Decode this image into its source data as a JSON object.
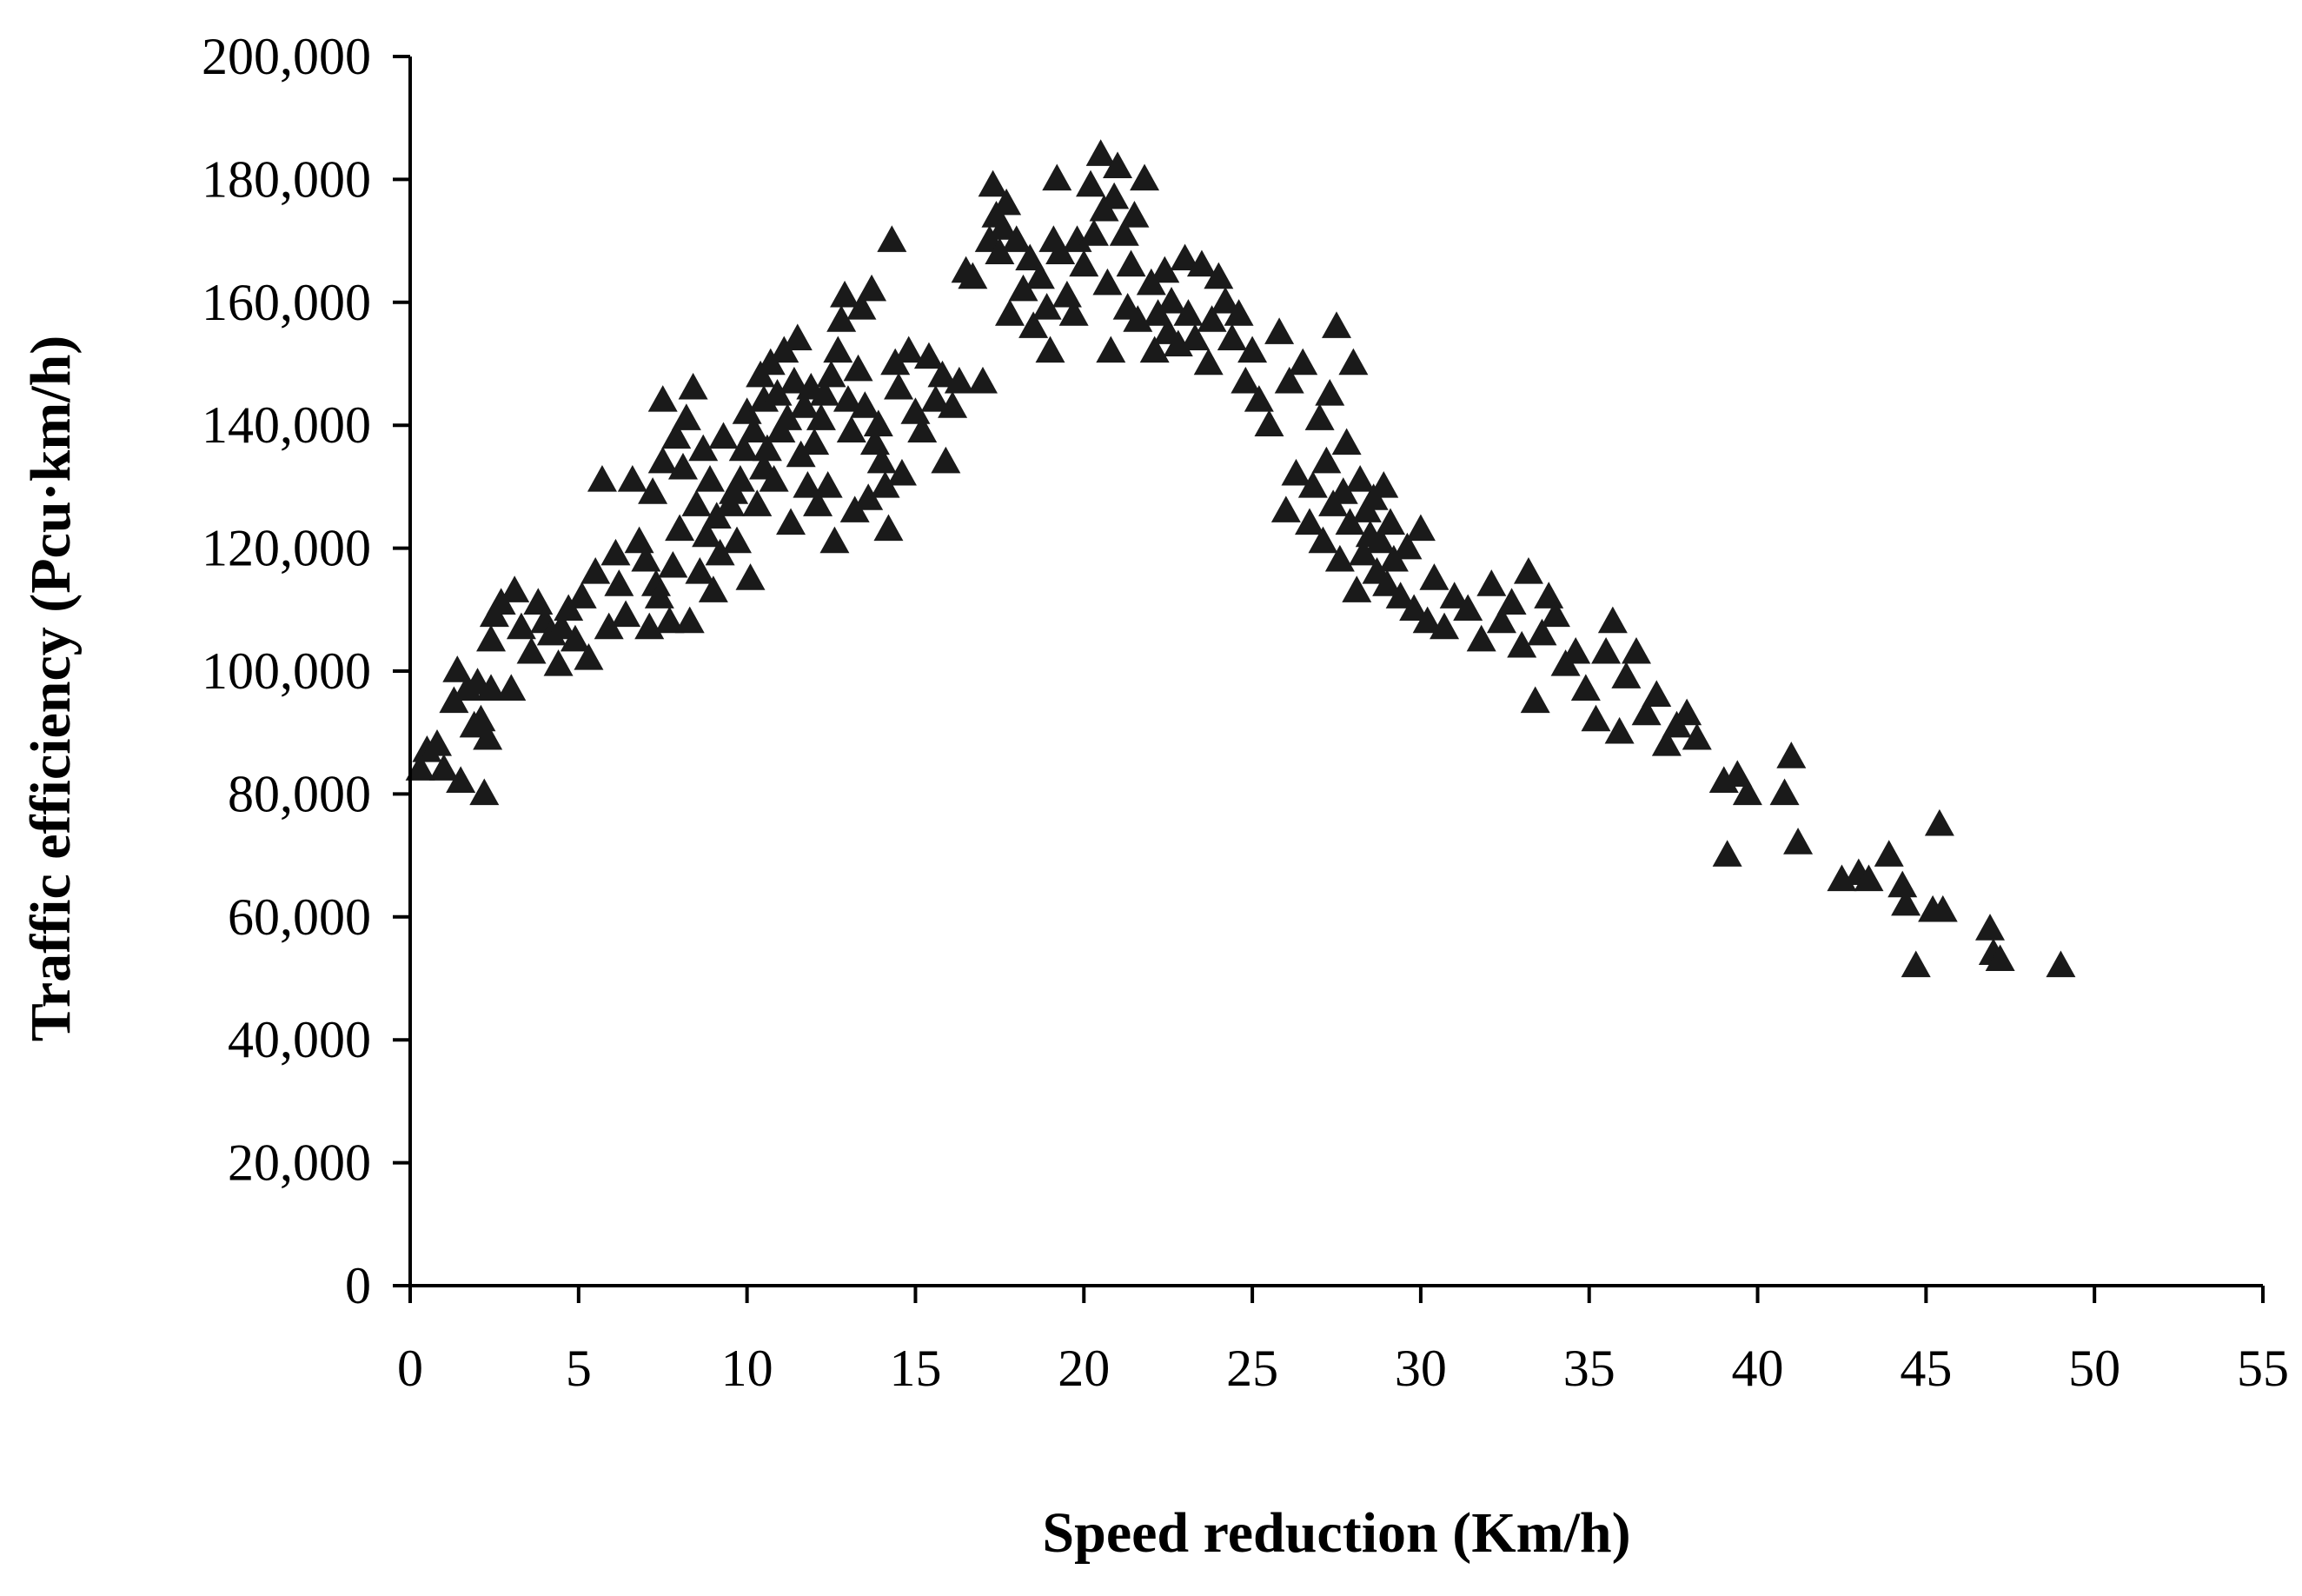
{
  "chart_data": {
    "type": "scatter",
    "title": "",
    "xlabel": "Speed reduction (Km/h)",
    "ylabel": "Traffic efficiency (Pcu·km/h)",
    "xlim": [
      0,
      55
    ],
    "ylim": [
      0,
      200000
    ],
    "x_ticks": [
      0,
      5,
      10,
      15,
      20,
      25,
      30,
      35,
      40,
      45,
      50,
      55
    ],
    "x_tick_labels": [
      "0",
      "5",
      "10",
      "15",
      "20",
      "25",
      "30",
      "35",
      "40",
      "45",
      "50",
      "55"
    ],
    "y_ticks": [
      0,
      20000,
      40000,
      60000,
      80000,
      100000,
      120000,
      140000,
      160000,
      180000,
      200000
    ],
    "y_tick_labels": [
      "0",
      "20,000",
      "40,000",
      "60,000",
      "80,000",
      "100,000",
      "120,000",
      "140,000",
      "160,000",
      "180,000",
      "200,000"
    ],
    "grid": false,
    "legend": "none",
    "marker": "triangle",
    "marker_color": "#1a1a1a",
    "series": [
      {
        "name": "Traffic efficiency",
        "points": [
          [
            0.3,
            84000
          ],
          [
            0.5,
            87000
          ],
          [
            0.8,
            88000
          ],
          [
            1.0,
            84000
          ],
          [
            1.3,
            95000
          ],
          [
            1.4,
            100000
          ],
          [
            1.5,
            82000
          ],
          [
            1.7,
            97000
          ],
          [
            1.9,
            91000
          ],
          [
            2.0,
            98000
          ],
          [
            2.1,
            92000
          ],
          [
            2.2,
            80000
          ],
          [
            2.3,
            89000
          ],
          [
            2.4,
            97000
          ],
          [
            2.4,
            105000
          ],
          [
            2.5,
            109000
          ],
          [
            2.7,
            111000
          ],
          [
            3.0,
            97000
          ],
          [
            3.1,
            113000
          ],
          [
            3.3,
            107000
          ],
          [
            3.6,
            103000
          ],
          [
            3.8,
            111000
          ],
          [
            4.0,
            108000
          ],
          [
            4.2,
            106000
          ],
          [
            4.4,
            101000
          ],
          [
            4.5,
            107000
          ],
          [
            4.7,
            110000
          ],
          [
            4.9,
            105000
          ],
          [
            5.1,
            112000
          ],
          [
            5.3,
            102000
          ],
          [
            5.5,
            116000
          ],
          [
            5.7,
            131000
          ],
          [
            5.9,
            107000
          ],
          [
            6.1,
            119000
          ],
          [
            6.2,
            114000
          ],
          [
            6.4,
            109000
          ],
          [
            6.6,
            131000
          ],
          [
            6.8,
            121000
          ],
          [
            7.0,
            118000
          ],
          [
            7.1,
            107000
          ],
          [
            7.2,
            129000
          ],
          [
            7.3,
            114000
          ],
          [
            7.4,
            112000
          ],
          [
            7.5,
            144000
          ],
          [
            7.5,
            134000
          ],
          [
            7.7,
            108000
          ],
          [
            7.8,
            117000
          ],
          [
            7.9,
            138000
          ],
          [
            8.0,
            123000
          ],
          [
            8.1,
            133000
          ],
          [
            8.2,
            141000
          ],
          [
            8.3,
            108000
          ],
          [
            8.4,
            146000
          ],
          [
            8.5,
            127000
          ],
          [
            8.6,
            116000
          ],
          [
            8.7,
            136000
          ],
          [
            8.8,
            122000
          ],
          [
            8.9,
            131000
          ],
          [
            9.0,
            113000
          ],
          [
            9.1,
            125000
          ],
          [
            9.2,
            119000
          ],
          [
            9.3,
            138000
          ],
          [
            9.5,
            127000
          ],
          [
            9.6,
            129000
          ],
          [
            9.7,
            121000
          ],
          [
            9.8,
            131000
          ],
          [
            9.9,
            136000
          ],
          [
            10.0,
            142000
          ],
          [
            10.1,
            115000
          ],
          [
            10.2,
            139000
          ],
          [
            10.3,
            127000
          ],
          [
            10.4,
            148000
          ],
          [
            10.5,
            133000
          ],
          [
            10.5,
            144000
          ],
          [
            10.6,
            136000
          ],
          [
            10.7,
            150000
          ],
          [
            10.8,
            131000
          ],
          [
            10.9,
            145000
          ],
          [
            11.0,
            139000
          ],
          [
            11.1,
            152000
          ],
          [
            11.2,
            141000
          ],
          [
            11.3,
            124000
          ],
          [
            11.4,
            147000
          ],
          [
            11.5,
            154000
          ],
          [
            11.6,
            135000
          ],
          [
            11.7,
            143000
          ],
          [
            11.8,
            130000
          ],
          [
            11.9,
            146000
          ],
          [
            12.0,
            137000
          ],
          [
            12.1,
            127000
          ],
          [
            12.2,
            141000
          ],
          [
            12.3,
            145000
          ],
          [
            12.4,
            130000
          ],
          [
            12.5,
            148000
          ],
          [
            12.6,
            121000
          ],
          [
            12.7,
            152000
          ],
          [
            12.8,
            157000
          ],
          [
            12.9,
            161000
          ],
          [
            13.0,
            144000
          ],
          [
            13.1,
            139000
          ],
          [
            13.2,
            126000
          ],
          [
            13.3,
            149000
          ],
          [
            13.4,
            159000
          ],
          [
            13.5,
            143000
          ],
          [
            13.6,
            128000
          ],
          [
            13.7,
            162000
          ],
          [
            13.8,
            137000
          ],
          [
            13.9,
            140000
          ],
          [
            14.0,
            134000
          ],
          [
            14.1,
            130000
          ],
          [
            14.2,
            123000
          ],
          [
            14.3,
            170000
          ],
          [
            14.4,
            150000
          ],
          [
            14.5,
            146000
          ],
          [
            14.6,
            132000
          ],
          [
            14.8,
            152000
          ],
          [
            15.0,
            142000
          ],
          [
            15.2,
            139000
          ],
          [
            15.4,
            151000
          ],
          [
            15.6,
            144000
          ],
          [
            15.8,
            148000
          ],
          [
            15.9,
            134000
          ],
          [
            16.1,
            143000
          ],
          [
            16.3,
            147000
          ],
          [
            16.5,
            165000
          ],
          [
            16.7,
            164000
          ],
          [
            17.0,
            147000
          ],
          [
            17.2,
            170000
          ],
          [
            17.3,
            179000
          ],
          [
            17.4,
            174000
          ],
          [
            17.5,
            168000
          ],
          [
            17.6,
            172000
          ],
          [
            17.7,
            176000
          ],
          [
            17.8,
            158000
          ],
          [
            18.0,
            170000
          ],
          [
            18.2,
            162000
          ],
          [
            18.4,
            167000
          ],
          [
            18.5,
            156000
          ],
          [
            18.7,
            164000
          ],
          [
            18.9,
            159000
          ],
          [
            19.0,
            152000
          ],
          [
            19.1,
            170000
          ],
          [
            19.2,
            180000
          ],
          [
            19.3,
            168000
          ],
          [
            19.5,
            161000
          ],
          [
            19.7,
            158000
          ],
          [
            19.8,
            170000
          ],
          [
            20.0,
            166000
          ],
          [
            20.2,
            179000
          ],
          [
            20.3,
            171000
          ],
          [
            20.5,
            184000
          ],
          [
            20.6,
            175000
          ],
          [
            20.7,
            163000
          ],
          [
            20.8,
            152000
          ],
          [
            20.9,
            177000
          ],
          [
            21.0,
            182000
          ],
          [
            21.2,
            171000
          ],
          [
            21.3,
            159000
          ],
          [
            21.4,
            166000
          ],
          [
            21.5,
            174000
          ],
          [
            21.6,
            157000
          ],
          [
            21.8,
            180000
          ],
          [
            22.0,
            163000
          ],
          [
            22.1,
            152000
          ],
          [
            22.2,
            158000
          ],
          [
            22.4,
            165000
          ],
          [
            22.5,
            155000
          ],
          [
            22.6,
            160000
          ],
          [
            22.8,
            153000
          ],
          [
            23.0,
            167000
          ],
          [
            23.1,
            158000
          ],
          [
            23.3,
            154000
          ],
          [
            23.5,
            166000
          ],
          [
            23.7,
            150000
          ],
          [
            23.8,
            157000
          ],
          [
            24.0,
            164000
          ],
          [
            24.2,
            160000
          ],
          [
            24.4,
            154000
          ],
          [
            24.6,
            158000
          ],
          [
            24.8,
            147000
          ],
          [
            25.0,
            152000
          ],
          [
            25.2,
            144000
          ],
          [
            25.5,
            140000
          ],
          [
            25.8,
            155000
          ],
          [
            26.0,
            126000
          ],
          [
            26.1,
            147000
          ],
          [
            26.3,
            132000
          ],
          [
            26.5,
            150000
          ],
          [
            26.7,
            124000
          ],
          [
            26.8,
            130000
          ],
          [
            27.0,
            141000
          ],
          [
            27.1,
            121000
          ],
          [
            27.2,
            134000
          ],
          [
            27.3,
            145000
          ],
          [
            27.4,
            127000
          ],
          [
            27.5,
            156000
          ],
          [
            27.6,
            118000
          ],
          [
            27.7,
            129000
          ],
          [
            27.8,
            137000
          ],
          [
            27.9,
            124000
          ],
          [
            28.0,
            150000
          ],
          [
            28.1,
            113000
          ],
          [
            28.2,
            131000
          ],
          [
            28.3,
            119000
          ],
          [
            28.4,
            126000
          ],
          [
            28.5,
            122000
          ],
          [
            28.6,
            128000
          ],
          [
            28.7,
            116000
          ],
          [
            28.8,
            121000
          ],
          [
            28.9,
            130000
          ],
          [
            29.0,
            114000
          ],
          [
            29.1,
            124000
          ],
          [
            29.2,
            118000
          ],
          [
            29.4,
            112000
          ],
          [
            29.6,
            120000
          ],
          [
            29.8,
            110000
          ],
          [
            30.0,
            123000
          ],
          [
            30.2,
            108000
          ],
          [
            30.4,
            115000
          ],
          [
            30.7,
            107000
          ],
          [
            31.0,
            112000
          ],
          [
            31.4,
            110000
          ],
          [
            31.8,
            105000
          ],
          [
            32.1,
            114000
          ],
          [
            32.4,
            108000
          ],
          [
            32.7,
            111000
          ],
          [
            33.0,
            104000
          ],
          [
            33.2,
            116000
          ],
          [
            33.4,
            95000
          ],
          [
            33.6,
            106000
          ],
          [
            33.8,
            112000
          ],
          [
            34.0,
            109000
          ],
          [
            34.3,
            101000
          ],
          [
            34.6,
            103000
          ],
          [
            34.9,
            97000
          ],
          [
            35.2,
            92000
          ],
          [
            35.5,
            103000
          ],
          [
            35.7,
            108000
          ],
          [
            35.9,
            90000
          ],
          [
            36.1,
            99000
          ],
          [
            36.4,
            103000
          ],
          [
            36.7,
            93000
          ],
          [
            37.0,
            96000
          ],
          [
            37.3,
            88000
          ],
          [
            37.6,
            91000
          ],
          [
            37.9,
            93000
          ],
          [
            38.2,
            89000
          ],
          [
            39.0,
            82000
          ],
          [
            39.1,
            70000
          ],
          [
            39.4,
            83000
          ],
          [
            39.7,
            80000
          ],
          [
            40.8,
            80000
          ],
          [
            41.0,
            86000
          ],
          [
            41.2,
            72000
          ],
          [
            42.5,
            66000
          ],
          [
            43.0,
            67000
          ],
          [
            43.3,
            66000
          ],
          [
            43.9,
            70000
          ],
          [
            44.3,
            65000
          ],
          [
            44.4,
            62000
          ],
          [
            44.7,
            52000
          ],
          [
            45.2,
            61000
          ],
          [
            45.4,
            75000
          ],
          [
            45.5,
            61000
          ],
          [
            46.9,
            58000
          ],
          [
            47.0,
            54000
          ],
          [
            47.2,
            53000
          ],
          [
            49.0,
            52000
          ]
        ]
      }
    ]
  }
}
